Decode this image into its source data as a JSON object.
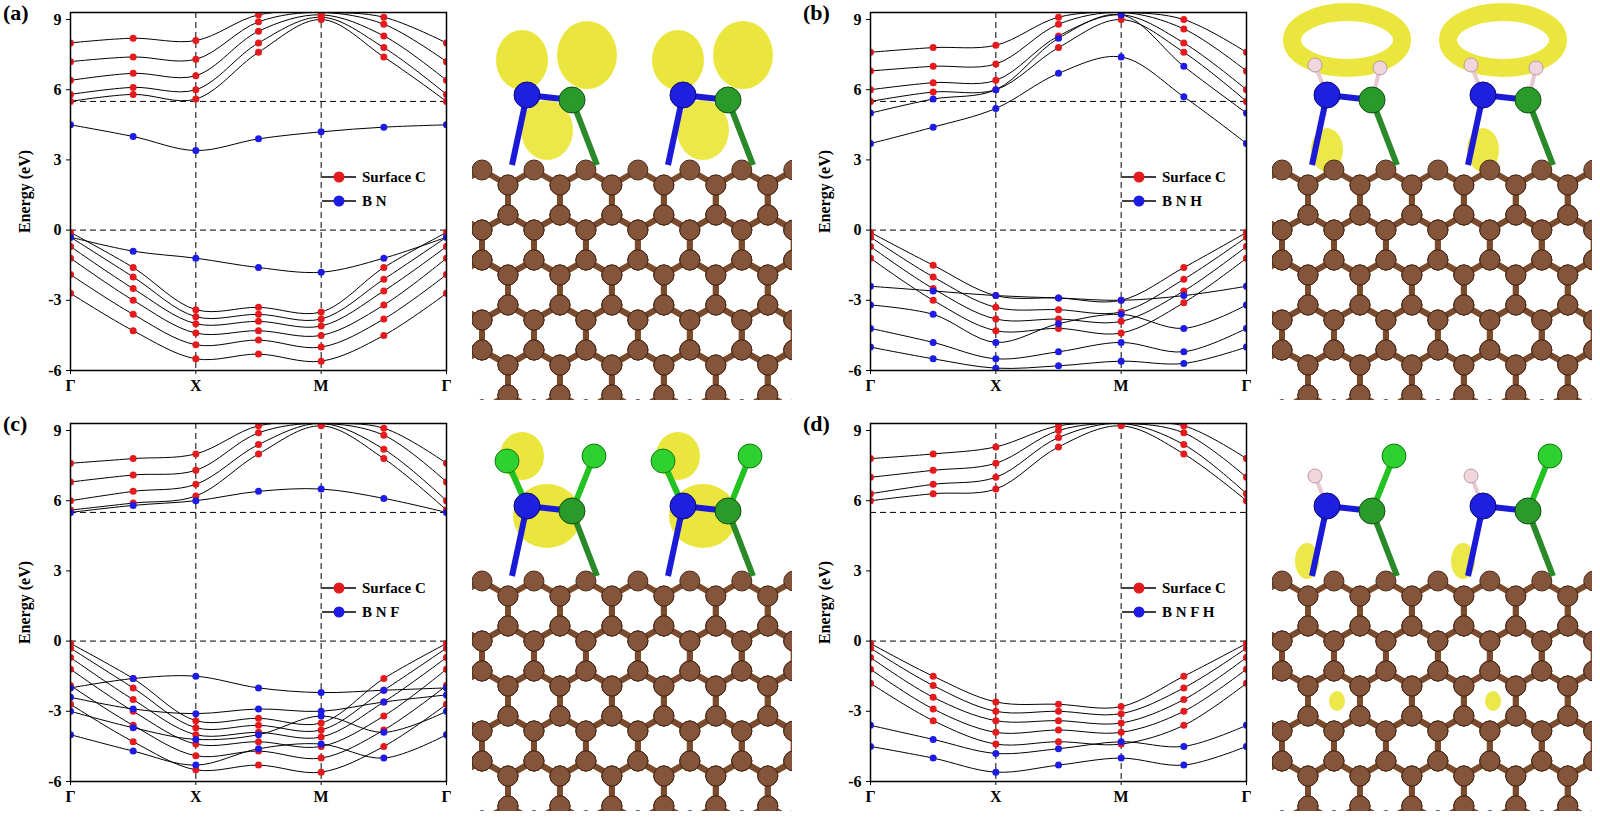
{
  "chart_data": [
    {
      "type": "line",
      "panel": "(a)",
      "ylabel": "Energy (eV)",
      "marker": "circle",
      "legend": "right",
      "x": [
        0,
        0.5,
        1,
        1.5,
        2,
        2.5,
        3
      ],
      "xlim": [
        0,
        3
      ],
      "xticks": [
        {
          "value": 0,
          "label": "Γ"
        },
        {
          "value": 1,
          "label": "X"
        },
        {
          "value": 2,
          "label": "M"
        },
        {
          "value": 3,
          "label": "Γ"
        }
      ],
      "ylim": [
        -6,
        9.3
      ],
      "yticks": [
        -6,
        -3,
        0,
        3,
        6,
        9
      ],
      "hlines": [
        0,
        5.5
      ],
      "vlines": [
        1,
        2
      ],
      "series": [
        {
          "name": "Surface C",
          "color": "#e41a1c",
          "bands": [
            [
              -0.1,
              -1.6,
              -3.4,
              -3.3,
              -3.5,
              -1.6,
              -0.1
            ],
            [
              -0.3,
              -2.0,
              -3.7,
              -3.6,
              -3.8,
              -2.1,
              -0.3
            ],
            [
              -0.7,
              -2.5,
              -4.0,
              -3.9,
              -4.1,
              -2.6,
              -0.7
            ],
            [
              -1.2,
              -3.0,
              -4.4,
              -4.3,
              -4.5,
              -3.2,
              -1.2
            ],
            [
              -1.9,
              -3.6,
              -4.9,
              -4.7,
              -5.0,
              -3.8,
              -1.9
            ],
            [
              -2.7,
              -4.3,
              -5.5,
              -5.3,
              -5.6,
              -4.5,
              -2.7
            ],
            [
              5.5,
              5.8,
              5.6,
              7.6,
              9.0,
              7.4,
              5.5
            ],
            [
              5.8,
              6.1,
              6.0,
              8.0,
              9.1,
              7.8,
              5.8
            ],
            [
              6.4,
              6.7,
              6.6,
              8.5,
              9.2,
              8.3,
              6.4
            ],
            [
              7.2,
              7.4,
              7.3,
              8.9,
              9.3,
              8.8,
              7.2
            ],
            [
              8.0,
              8.2,
              8.1,
              9.2,
              9.3,
              9.1,
              8.0
            ]
          ]
        },
        {
          "name": "B N",
          "color": "#1c1ce6",
          "bands": [
            [
              4.5,
              4.0,
              3.4,
              3.9,
              4.2,
              4.4,
              4.5
            ],
            [
              -0.3,
              -0.9,
              -1.2,
              -1.6,
              -1.8,
              -1.2,
              -0.3
            ]
          ]
        }
      ]
    },
    {
      "type": "line",
      "panel": "(b)",
      "ylabel": "Energy (eV)",
      "marker": "circle",
      "legend": "right",
      "x": [
        0,
        0.5,
        1,
        1.5,
        2,
        2.5,
        3
      ],
      "xlim": [
        0,
        3
      ],
      "xticks": [
        {
          "value": 0,
          "label": "Γ"
        },
        {
          "value": 1,
          "label": "X"
        },
        {
          "value": 2,
          "label": "M"
        },
        {
          "value": 3,
          "label": "Γ"
        }
      ],
      "ylim": [
        -6,
        9.3
      ],
      "yticks": [
        -6,
        -3,
        0,
        3,
        6,
        9
      ],
      "hlines": [
        0,
        5.5
      ],
      "vlines": [
        1,
        2
      ],
      "series": [
        {
          "name": "Surface C",
          "color": "#e41a1c",
          "bands": [
            [
              -0.1,
              -1.5,
              -2.8,
              -2.9,
              -3.0,
              -1.6,
              -0.1
            ],
            [
              -0.3,
              -2.0,
              -3.3,
              -3.4,
              -3.5,
              -2.1,
              -0.3
            ],
            [
              -0.7,
              -2.5,
              -3.8,
              -3.8,
              -3.9,
              -2.6,
              -0.7
            ],
            [
              -1.2,
              -3.0,
              -4.3,
              -4.2,
              -4.4,
              -3.1,
              -1.2
            ],
            [
              5.5,
              5.9,
              6.0,
              7.8,
              9.0,
              7.6,
              5.5
            ],
            [
              6.0,
              6.3,
              6.4,
              8.3,
              9.2,
              8.0,
              6.0
            ],
            [
              6.8,
              7.0,
              7.1,
              8.8,
              9.3,
              8.6,
              6.8
            ],
            [
              7.6,
              7.8,
              7.9,
              9.1,
              9.3,
              9.0,
              7.6
            ]
          ]
        },
        {
          "name": "B N H",
          "color": "#1c1ce6",
          "bands": [
            [
              3.7,
              4.4,
              5.2,
              6.7,
              7.4,
              5.7,
              3.7
            ],
            [
              5.0,
              5.6,
              6.0,
              8.2,
              9.2,
              7.0,
              5.0
            ],
            [
              -2.4,
              -2.6,
              -2.8,
              -2.9,
              -3.0,
              -2.8,
              -2.4
            ],
            [
              -3.2,
              -3.6,
              -4.8,
              -4.0,
              -3.6,
              -4.2,
              -3.2
            ],
            [
              -4.2,
              -4.8,
              -5.5,
              -5.2,
              -4.8,
              -5.2,
              -4.2
            ],
            [
              -5.0,
              -5.5,
              -5.9,
              -5.8,
              -5.6,
              -5.7,
              -5.0
            ]
          ]
        }
      ]
    },
    {
      "type": "line",
      "panel": "(c)",
      "ylabel": "Energy (eV)",
      "marker": "circle",
      "legend": "right",
      "x": [
        0,
        0.5,
        1,
        1.5,
        2,
        2.5,
        3
      ],
      "xlim": [
        0,
        3
      ],
      "xticks": [
        {
          "value": 0,
          "label": "Γ"
        },
        {
          "value": 1,
          "label": "X"
        },
        {
          "value": 2,
          "label": "M"
        },
        {
          "value": 3,
          "label": "Γ"
        }
      ],
      "ylim": [
        -6,
        9.3
      ],
      "yticks": [
        -6,
        -3,
        0,
        3,
        6,
        9
      ],
      "hlines": [
        0,
        5.5
      ],
      "vlines": [
        1,
        2
      ],
      "series": [
        {
          "name": "Surface C",
          "color": "#e41a1c",
          "bands": [
            [
              -0.1,
              -1.6,
              -3.4,
              -3.3,
              -3.5,
              -1.6,
              -0.1
            ],
            [
              -0.3,
              -2.0,
              -3.7,
              -3.6,
              -3.8,
              -2.1,
              -0.3
            ],
            [
              -0.7,
              -2.5,
              -4.0,
              -3.9,
              -4.1,
              -2.6,
              -0.7
            ],
            [
              -1.2,
              -3.0,
              -4.4,
              -4.3,
              -4.5,
              -3.2,
              -1.2
            ],
            [
              -1.9,
              -3.6,
              -4.9,
              -4.7,
              -5.0,
              -3.8,
              -1.9
            ],
            [
              -2.7,
              -4.3,
              -5.5,
              -5.3,
              -5.6,
              -4.5,
              -2.7
            ],
            [
              5.6,
              5.9,
              6.2,
              8.0,
              9.2,
              7.8,
              5.6
            ],
            [
              6.0,
              6.4,
              6.7,
              8.4,
              9.3,
              8.2,
              6.0
            ],
            [
              6.8,
              7.1,
              7.3,
              8.9,
              9.3,
              8.8,
              6.8
            ],
            [
              7.6,
              7.8,
              8.0,
              9.2,
              9.3,
              9.1,
              7.6
            ]
          ]
        },
        {
          "name": "B N F",
          "color": "#1c1ce6",
          "bands": [
            [
              5.5,
              5.8,
              6.0,
              6.4,
              6.5,
              6.1,
              5.5
            ],
            [
              -2.0,
              -1.6,
              -1.5,
              -2.0,
              -2.2,
              -2.1,
              -2.0
            ],
            [
              -2.4,
              -2.9,
              -3.1,
              -2.9,
              -3.0,
              -2.6,
              -2.3
            ],
            [
              -3.0,
              -3.7,
              -4.2,
              -4.0,
              -3.2,
              -3.9,
              -3.0
            ],
            [
              -4.0,
              -4.7,
              -5.3,
              -4.6,
              -4.4,
              -5.0,
              -4.0
            ]
          ]
        }
      ]
    },
    {
      "type": "line",
      "panel": "(d)",
      "ylabel": "Energy (eV)",
      "marker": "circle",
      "legend": "right",
      "x": [
        0,
        0.5,
        1,
        1.5,
        2,
        2.5,
        3
      ],
      "xlim": [
        0,
        3
      ],
      "xticks": [
        {
          "value": 0,
          "label": "Γ"
        },
        {
          "value": 1,
          "label": "X"
        },
        {
          "value": 2,
          "label": "M"
        },
        {
          "value": 3,
          "label": "Γ"
        }
      ],
      "ylim": [
        -6,
        9.3
      ],
      "yticks": [
        -6,
        -3,
        0,
        3,
        6,
        9
      ],
      "hlines": [
        0,
        5.5
      ],
      "vlines": [
        1,
        2
      ],
      "series": [
        {
          "name": "Surface C",
          "color": "#e41a1c",
          "bands": [
            [
              -0.1,
              -1.5,
              -2.6,
              -2.7,
              -2.8,
              -1.5,
              -0.1
            ],
            [
              -0.3,
              -1.9,
              -3.0,
              -3.0,
              -3.1,
              -2.0,
              -0.3
            ],
            [
              -0.7,
              -2.4,
              -3.4,
              -3.4,
              -3.5,
              -2.5,
              -0.7
            ],
            [
              -1.2,
              -2.9,
              -3.9,
              -3.8,
              -3.9,
              -3.0,
              -1.2
            ],
            [
              -1.8,
              -3.4,
              -4.4,
              -4.3,
              -4.4,
              -3.6,
              -1.8
            ],
            [
              6.0,
              6.3,
              6.5,
              8.3,
              9.2,
              8.0,
              6.0
            ],
            [
              6.3,
              6.7,
              7.0,
              8.7,
              9.3,
              8.4,
              6.3
            ],
            [
              7.0,
              7.3,
              7.6,
              9.0,
              9.3,
              8.9,
              7.0
            ],
            [
              7.8,
              8.0,
              8.3,
              9.2,
              9.3,
              9.2,
              7.8
            ]
          ]
        },
        {
          "name": "B N F H",
          "color": "#1c1ce6",
          "bands": [
            [
              -3.6,
              -4.2,
              -4.8,
              -4.6,
              -4.3,
              -4.5,
              -3.6
            ],
            [
              -4.5,
              -5.0,
              -5.6,
              -5.3,
              -5.0,
              -5.3,
              -4.5
            ]
          ]
        }
      ]
    }
  ]
}
